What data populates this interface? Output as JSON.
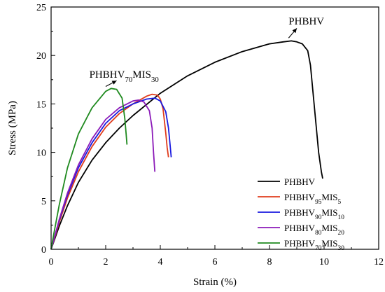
{
  "chart_data": {
    "type": "line",
    "xlabel": "Strain (%)",
    "ylabel": "Stress (MPa)",
    "xlim": [
      0,
      12
    ],
    "ylim": [
      0,
      25
    ],
    "xticks": [
      0,
      2,
      4,
      6,
      8,
      10,
      12
    ],
    "yticks": [
      0,
      5,
      10,
      15,
      20,
      25
    ],
    "grid": false,
    "legend_position": "bottom-right",
    "series": [
      {
        "name": "PHBHV",
        "label_base": "PHBHV",
        "label_sub1": "",
        "label_mid": "",
        "label_sub2": "",
        "color": "#000000",
        "points": [
          [
            0,
            0
          ],
          [
            0.1,
            0.8
          ],
          [
            0.3,
            2.4
          ],
          [
            0.6,
            4.5
          ],
          [
            1.0,
            6.9
          ],
          [
            1.5,
            9.2
          ],
          [
            2.0,
            11.0
          ],
          [
            2.5,
            12.5
          ],
          [
            3.0,
            13.8
          ],
          [
            4.0,
            16.1
          ],
          [
            5.0,
            17.9
          ],
          [
            6.0,
            19.3
          ],
          [
            7.0,
            20.4
          ],
          [
            8.0,
            21.2
          ],
          [
            8.5,
            21.4
          ],
          [
            8.8,
            21.5
          ],
          [
            9.0,
            21.4
          ],
          [
            9.2,
            21.2
          ],
          [
            9.4,
            20.5
          ],
          [
            9.5,
            19.0
          ],
          [
            9.6,
            16.0
          ],
          [
            9.7,
            13.0
          ],
          [
            9.8,
            10.0
          ],
          [
            9.9,
            8.0
          ],
          [
            9.95,
            7.3
          ]
        ]
      },
      {
        "name": "PHBHV95MIS5",
        "label_base": "PHBHV",
        "label_sub1": "95",
        "label_mid": "MIS",
        "label_sub2": "5",
        "color": "#e03c1c",
        "points": [
          [
            0,
            0
          ],
          [
            0.1,
            0.9
          ],
          [
            0.3,
            2.8
          ],
          [
            0.6,
            5.3
          ],
          [
            1.0,
            8.0
          ],
          [
            1.5,
            10.6
          ],
          [
            2.0,
            12.6
          ],
          [
            2.5,
            14.0
          ],
          [
            3.0,
            15.0
          ],
          [
            3.5,
            15.8
          ],
          [
            3.7,
            16.0
          ],
          [
            3.9,
            15.9
          ],
          [
            4.0,
            15.5
          ],
          [
            4.1,
            14.5
          ],
          [
            4.2,
            12.0
          ],
          [
            4.25,
            10.5
          ],
          [
            4.3,
            9.5
          ]
        ]
      },
      {
        "name": "PHBHV90MIS10",
        "label_base": "PHBHV",
        "label_sub1": "90",
        "label_mid": "MIS",
        "label_sub2": "10",
        "color": "#1a1adf",
        "points": [
          [
            0,
            0
          ],
          [
            0.1,
            1.0
          ],
          [
            0.3,
            3.0
          ],
          [
            0.6,
            5.6
          ],
          [
            1.0,
            8.4
          ],
          [
            1.5,
            11.0
          ],
          [
            2.0,
            13.0
          ],
          [
            2.5,
            14.3
          ],
          [
            3.0,
            15.0
          ],
          [
            3.5,
            15.5
          ],
          [
            3.8,
            15.6
          ],
          [
            4.0,
            15.3
          ],
          [
            4.2,
            14.2
          ],
          [
            4.3,
            12.5
          ],
          [
            4.35,
            11.0
          ],
          [
            4.4,
            9.5
          ]
        ]
      },
      {
        "name": "PHBHV80MIS20",
        "label_base": "PHBHV",
        "label_sub1": "80",
        "label_mid": "MIS",
        "label_sub2": "20",
        "color": "#8b1ab8",
        "points": [
          [
            0,
            0
          ],
          [
            0.1,
            1.0
          ],
          [
            0.3,
            3.1
          ],
          [
            0.6,
            5.8
          ],
          [
            1.0,
            8.7
          ],
          [
            1.5,
            11.4
          ],
          [
            2.0,
            13.4
          ],
          [
            2.5,
            14.6
          ],
          [
            3.0,
            15.3
          ],
          [
            3.2,
            15.4
          ],
          [
            3.4,
            15.2
          ],
          [
            3.6,
            14.3
          ],
          [
            3.7,
            12.5
          ],
          [
            3.75,
            10.0
          ],
          [
            3.8,
            8.0
          ]
        ]
      },
      {
        "name": "PHBHV70MIS30",
        "label_base": "PHBHV",
        "label_sub1": "70",
        "label_mid": "MIS",
        "label_sub2": "30",
        "color": "#1f8a1f",
        "points": [
          [
            0,
            0
          ],
          [
            0.1,
            1.6
          ],
          [
            0.3,
            4.6
          ],
          [
            0.6,
            8.4
          ],
          [
            1.0,
            11.9
          ],
          [
            1.5,
            14.6
          ],
          [
            2.0,
            16.3
          ],
          [
            2.2,
            16.6
          ],
          [
            2.4,
            16.5
          ],
          [
            2.6,
            15.6
          ],
          [
            2.7,
            13.5
          ],
          [
            2.75,
            11.8
          ],
          [
            2.78,
            10.8
          ]
        ]
      }
    ],
    "annotations": [
      {
        "label_base": "PHBHV",
        "label_sub1": "",
        "label_mid": "",
        "label_sub2": "",
        "text_x": 8.7,
        "text_y": 23.2,
        "arrow_from": [
          9.0,
          22.8
        ],
        "arrow_to": [
          8.7,
          21.8
        ]
      },
      {
        "label_base": "PHBHV",
        "label_sub1": "70",
        "label_mid": "MIS",
        "label_sub2": "30",
        "text_x": 1.4,
        "text_y": 17.7,
        "arrow_from": [
          2.4,
          17.4
        ],
        "arrow_to": [
          2.0,
          16.8
        ]
      }
    ]
  }
}
